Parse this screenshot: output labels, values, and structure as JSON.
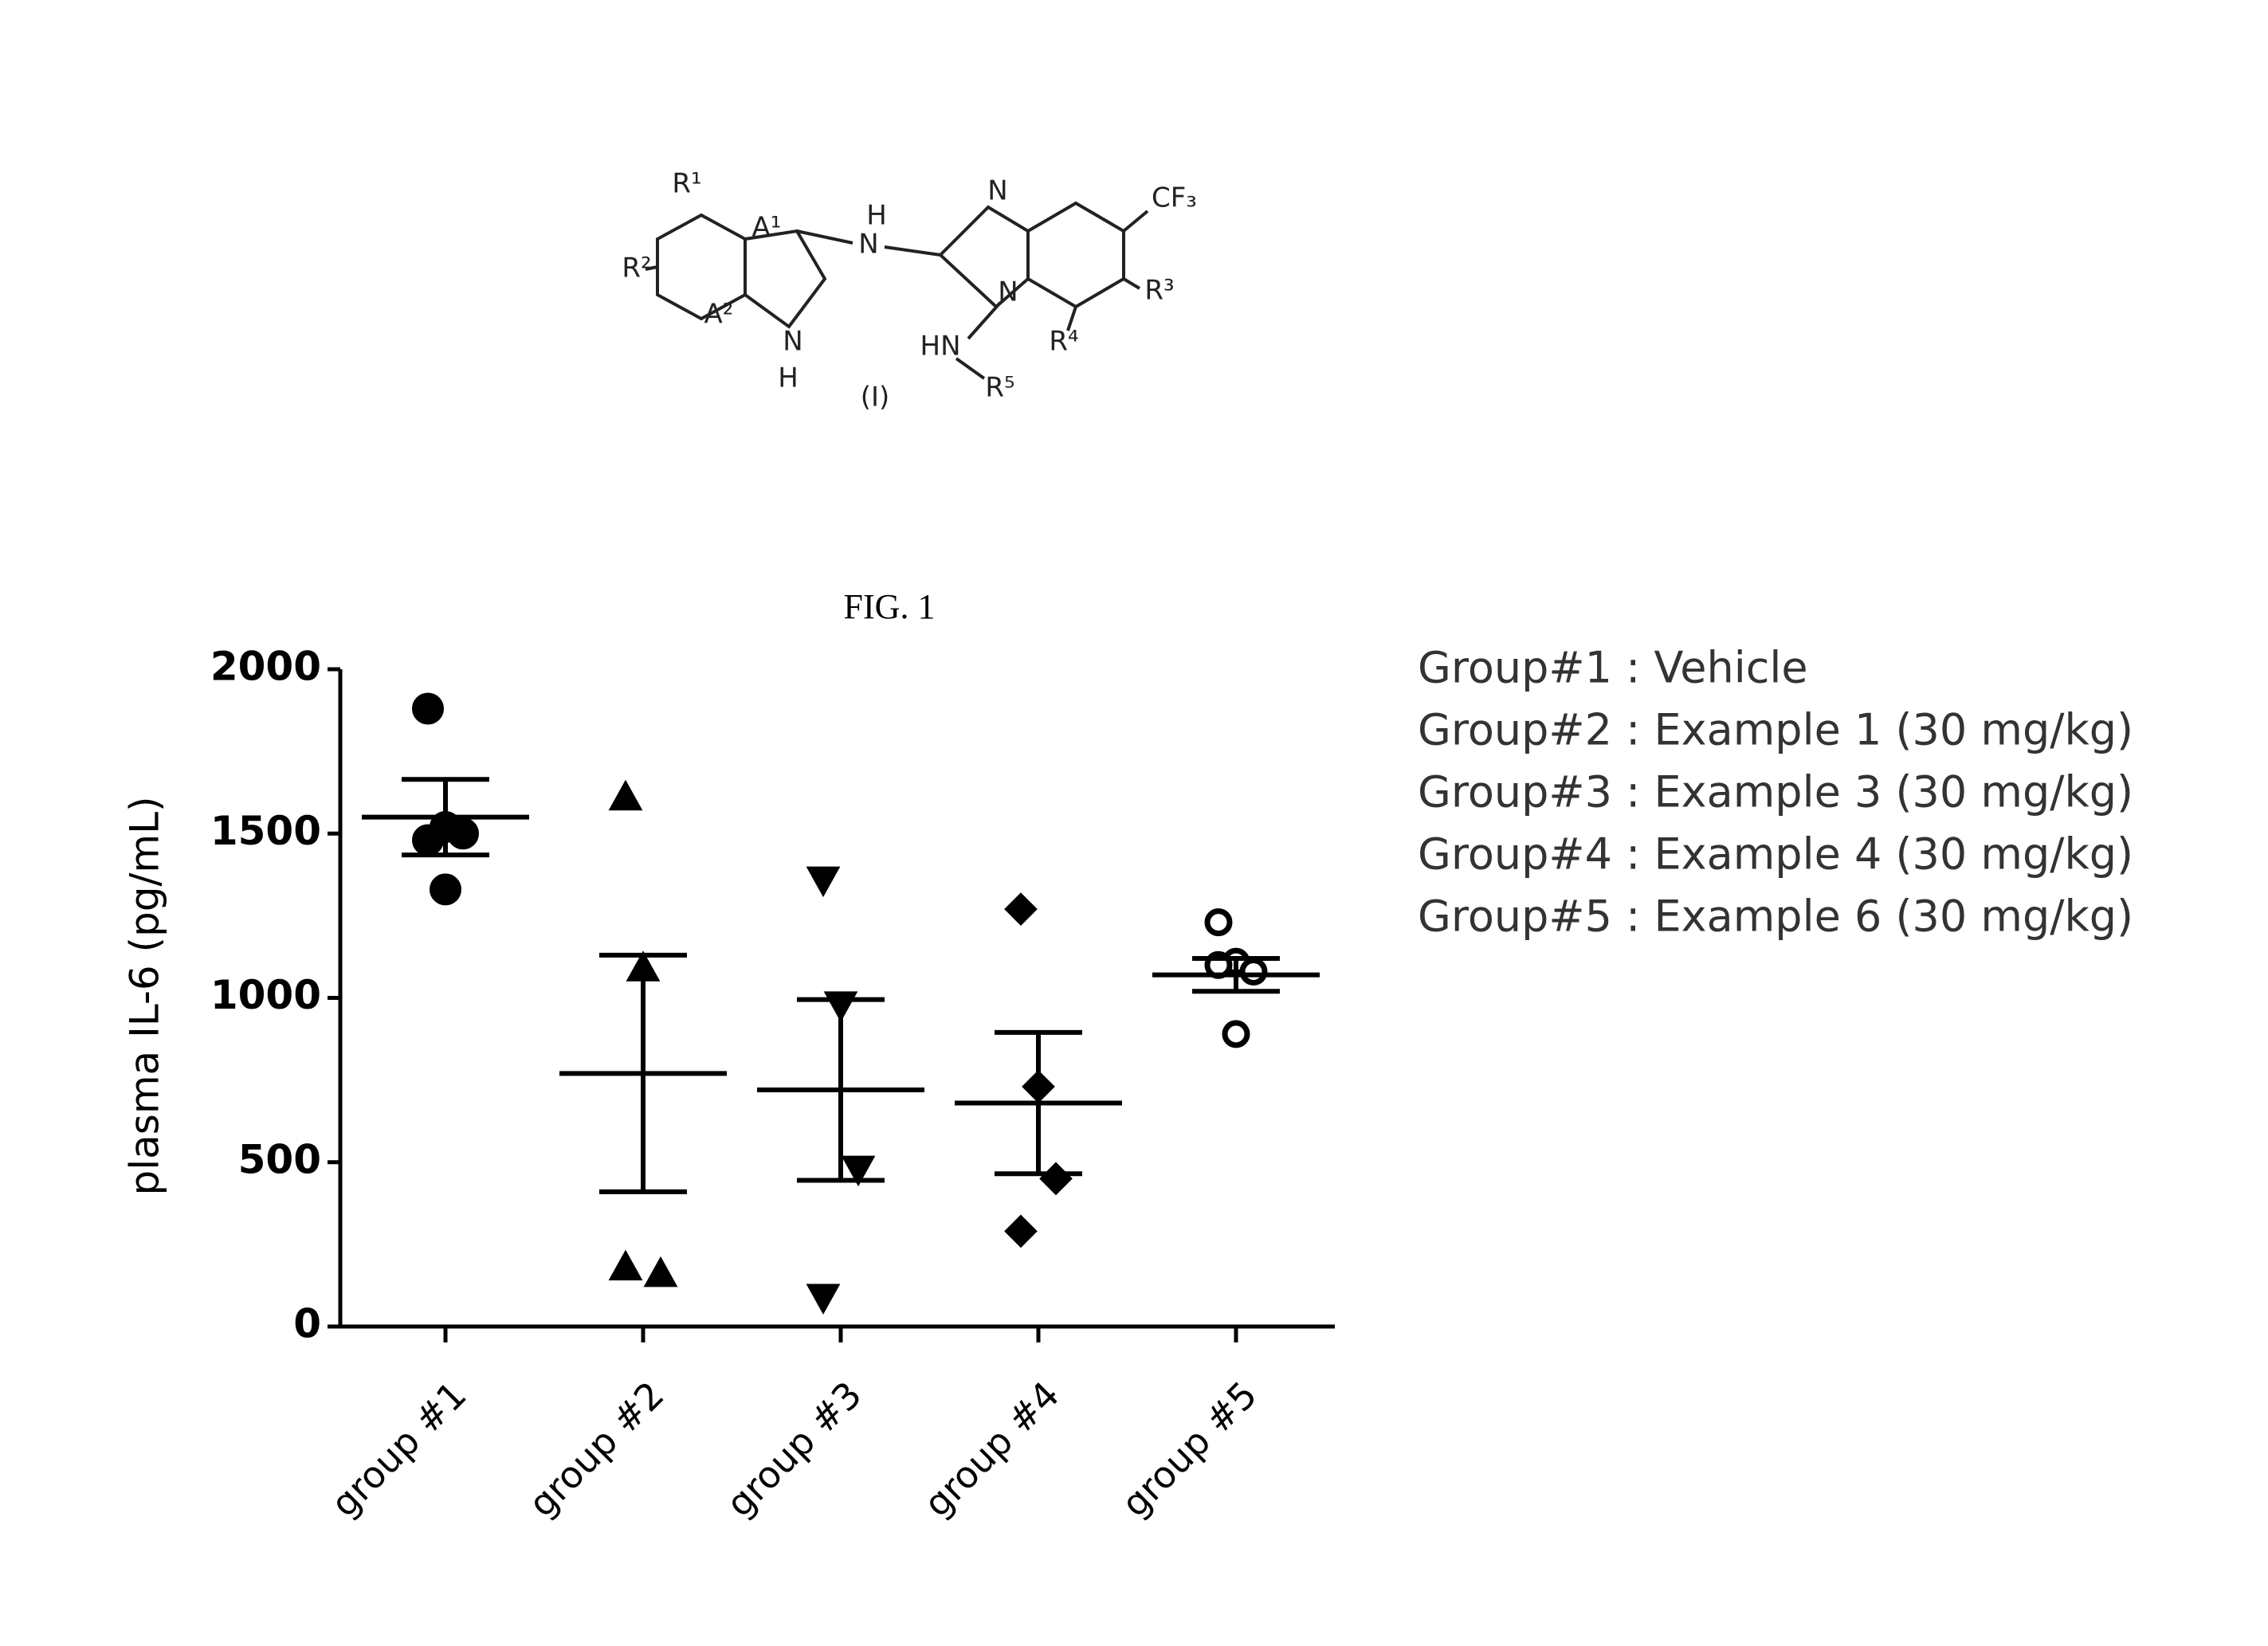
{
  "structure": {
    "labels": [
      "R¹",
      "A¹",
      "N",
      "H",
      "N",
      "CF₃",
      "R²",
      "A²",
      "R³",
      "N",
      "HN",
      "R⁴",
      "R⁵",
      "N",
      "H",
      "(I)"
    ]
  },
  "chart_data": {
    "type": "scatter",
    "title": "FIG. 1",
    "y_label": "plasma IL-6 (pg/mL)",
    "categories": [
      "group #1",
      "group #2",
      "group #3",
      "group #4",
      "group #5"
    ],
    "ylim": [
      0,
      2000
    ],
    "yticks": [
      0,
      500,
      1000,
      1500,
      2000
    ],
    "series": [
      {
        "name": "Group#1 : Vehicle",
        "marker": "circle",
        "color": "#000000",
        "values": [
          1880,
          1520,
          1500,
          1480,
          1330
        ],
        "mean": 1550,
        "sem": 115
      },
      {
        "name": "Group#2 : Example 1 (30 mg/kg)",
        "marker": "triangle-up",
        "color": "#000000",
        "values": [
          1610,
          1090,
          160,
          180
        ],
        "mean": 770,
        "sem": 360
      },
      {
        "name": "Group#3 : Example 3 (30 mg/kg)",
        "marker": "triangle-down",
        "color": "#000000",
        "values": [
          1360,
          980,
          480,
          90
        ],
        "mean": 720,
        "sem": 275
      },
      {
        "name": "Group#4 : Example 4 (30 mg/kg)",
        "marker": "diamond",
        "color": "#000000",
        "values": [
          1270,
          730,
          450,
          290
        ],
        "mean": 680,
        "sem": 215
      },
      {
        "name": "Group#5 : Example 6 (30 mg/kg)",
        "marker": "open-circle",
        "color": "#000000",
        "values": [
          1230,
          1110,
          1080,
          1100,
          890
        ],
        "mean": 1070,
        "sem": 50
      }
    ]
  }
}
